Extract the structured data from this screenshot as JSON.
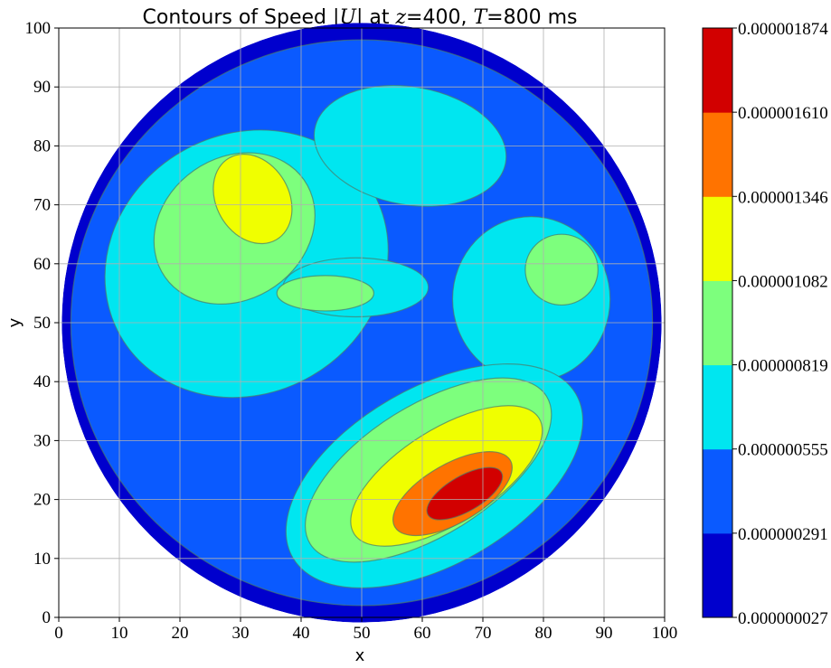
{
  "chart_data": {
    "type": "heatmap",
    "plot_kind": "filled-contour",
    "title": {
      "prefix": "Contours of Speed ",
      "var": "|U|",
      "mid1": " at ",
      "z_sym": "z",
      "z_val": "=400, ",
      "t_sym": "T",
      "t_val": "=800 ms"
    },
    "xlabel": "x",
    "ylabel": "y",
    "xlim": [
      0,
      100
    ],
    "ylim": [
      0,
      100
    ],
    "xticks": [
      "0",
      "10",
      "20",
      "30",
      "40",
      "50",
      "60",
      "70",
      "80",
      "90",
      "100"
    ],
    "yticks": [
      "0",
      "10",
      "20",
      "30",
      "40",
      "50",
      "60",
      "70",
      "80",
      "90",
      "100"
    ],
    "grid": true,
    "colorbar": {
      "levels": [
        "0.000000027",
        "0.000000291",
        "0.000000555",
        "0.000000819",
        "0.000001082",
        "0.000001346",
        "0.000001610",
        "0.000001874"
      ],
      "colors": [
        "#0000cd",
        "#0a5aff",
        "#00e6f0",
        "#7dff7d",
        "#f0ff00",
        "#ff7300",
        "#d20000"
      ]
    },
    "domain": {
      "center": [
        50,
        50
      ],
      "radius": 49.5
    },
    "regions": [
      {
        "level": 1,
        "shape": "ellipse",
        "cx": 50,
        "cy": 50,
        "rx": 48,
        "ry": 48,
        "rot": 0
      },
      {
        "level": 2,
        "shape": "ellipse",
        "cx": 31,
        "cy": 60,
        "rx": 24,
        "ry": 22,
        "rot": -30
      },
      {
        "level": 2,
        "shape": "ellipse",
        "cx": 58,
        "cy": 80,
        "rx": 16,
        "ry": 10,
        "rot": 10
      },
      {
        "level": 2,
        "shape": "ellipse",
        "cx": 78,
        "cy": 54,
        "rx": 13,
        "ry": 14,
        "rot": 0
      },
      {
        "level": 2,
        "shape": "ellipse",
        "cx": 62,
        "cy": 24,
        "rx": 27,
        "ry": 15,
        "rot": -30
      },
      {
        "level": 2,
        "shape": "ellipse",
        "cx": 49,
        "cy": 56,
        "rx": 12,
        "ry": 5,
        "rot": 0
      },
      {
        "level": 3,
        "shape": "ellipse",
        "cx": 29,
        "cy": 66,
        "rx": 14,
        "ry": 12,
        "rot": -35
      },
      {
        "level": 3,
        "shape": "ellipse",
        "cx": 44,
        "cy": 55,
        "rx": 8,
        "ry": 3,
        "rot": 0
      },
      {
        "level": 3,
        "shape": "ellipse",
        "cx": 61,
        "cy": 25,
        "rx": 23,
        "ry": 11,
        "rot": -32
      },
      {
        "level": 3,
        "shape": "ellipse",
        "cx": 83,
        "cy": 59,
        "rx": 6,
        "ry": 6,
        "rot": 0
      },
      {
        "level": 4,
        "shape": "ellipse",
        "cx": 32,
        "cy": 71,
        "rx": 6,
        "ry": 8,
        "rot": -30
      },
      {
        "level": 4,
        "shape": "ellipse",
        "cx": 64,
        "cy": 24,
        "rx": 18,
        "ry": 8,
        "rot": -32
      },
      {
        "level": 5,
        "shape": "ellipse",
        "cx": 65,
        "cy": 21,
        "rx": 11,
        "ry": 5,
        "rot": -30
      },
      {
        "level": 6,
        "shape": "ellipse",
        "cx": 67,
        "cy": 21,
        "rx": 7,
        "ry": 3,
        "rot": -30
      }
    ]
  }
}
